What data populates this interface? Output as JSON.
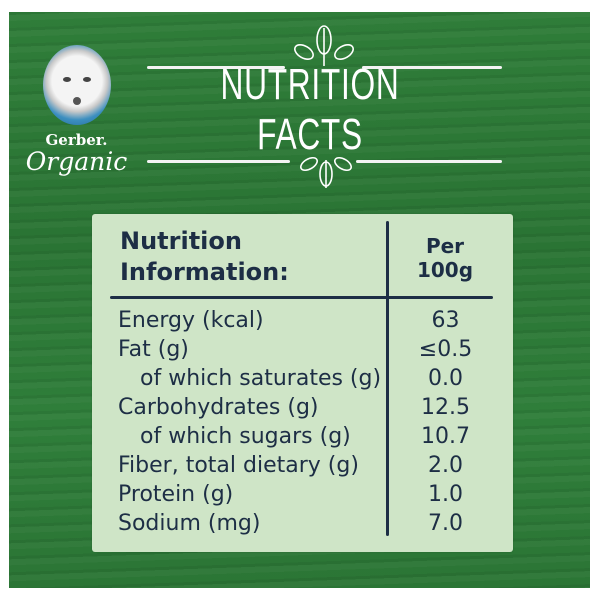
{
  "brand": {
    "name": "Gerber.",
    "line": "Organic"
  },
  "title": "NUTRITION FACTS",
  "table": {
    "header_label": [
      "Nutrition",
      "Information:"
    ],
    "header_value": [
      "Per",
      "100g"
    ],
    "rows": [
      {
        "label": "Energy (kcal)",
        "value": "63",
        "sub": false
      },
      {
        "label": "Fat (g)",
        "value": "≤0.5",
        "sub": false
      },
      {
        "label": "of which saturates (g)",
        "value": "0.0",
        "sub": true
      },
      {
        "label": "Carbohydrates (g)",
        "value": "12.5",
        "sub": false
      },
      {
        "label": "of which sugars (g)",
        "value": "10.7",
        "sub": true
      },
      {
        "label": "Fiber, total dietary (g)",
        "value": "2.0",
        "sub": false
      },
      {
        "label": "Protein (g)",
        "value": "1.0",
        "sub": false
      },
      {
        "label": "Sodium (mg)",
        "value": "7.0",
        "sub": false
      }
    ]
  },
  "colors": {
    "background": "#2d7a38",
    "panel": "#cfe5c7",
    "text": "#1d2e45"
  }
}
